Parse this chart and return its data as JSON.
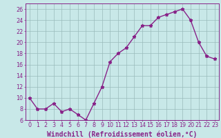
{
  "x": [
    0,
    1,
    2,
    3,
    4,
    5,
    6,
    7,
    8,
    9,
    10,
    11,
    12,
    13,
    14,
    15,
    16,
    17,
    18,
    19,
    20,
    21,
    22,
    23
  ],
  "y": [
    10,
    8,
    8,
    9,
    7.5,
    8,
    7,
    6,
    9,
    12,
    16.5,
    18,
    19,
    21,
    23,
    23,
    24.5,
    25,
    25.5,
    26,
    24,
    20,
    17.5,
    17
  ],
  "line_color": "#882288",
  "marker": "*",
  "marker_size": 3.5,
  "bg_color": "#c8e8e8",
  "grid_color": "#99bbbb",
  "xlabel": "Windchill (Refroidissement éolien,°C)",
  "xlabel_fontsize": 7,
  "ylim": [
    6,
    27
  ],
  "yticks": [
    6,
    8,
    10,
    12,
    14,
    16,
    18,
    20,
    22,
    24,
    26
  ],
  "xticks": [
    0,
    1,
    2,
    3,
    4,
    5,
    6,
    7,
    8,
    9,
    10,
    11,
    12,
    13,
    14,
    15,
    16,
    17,
    18,
    19,
    20,
    21,
    22,
    23
  ],
  "tick_fontsize": 5.8,
  "line_width": 1.0
}
